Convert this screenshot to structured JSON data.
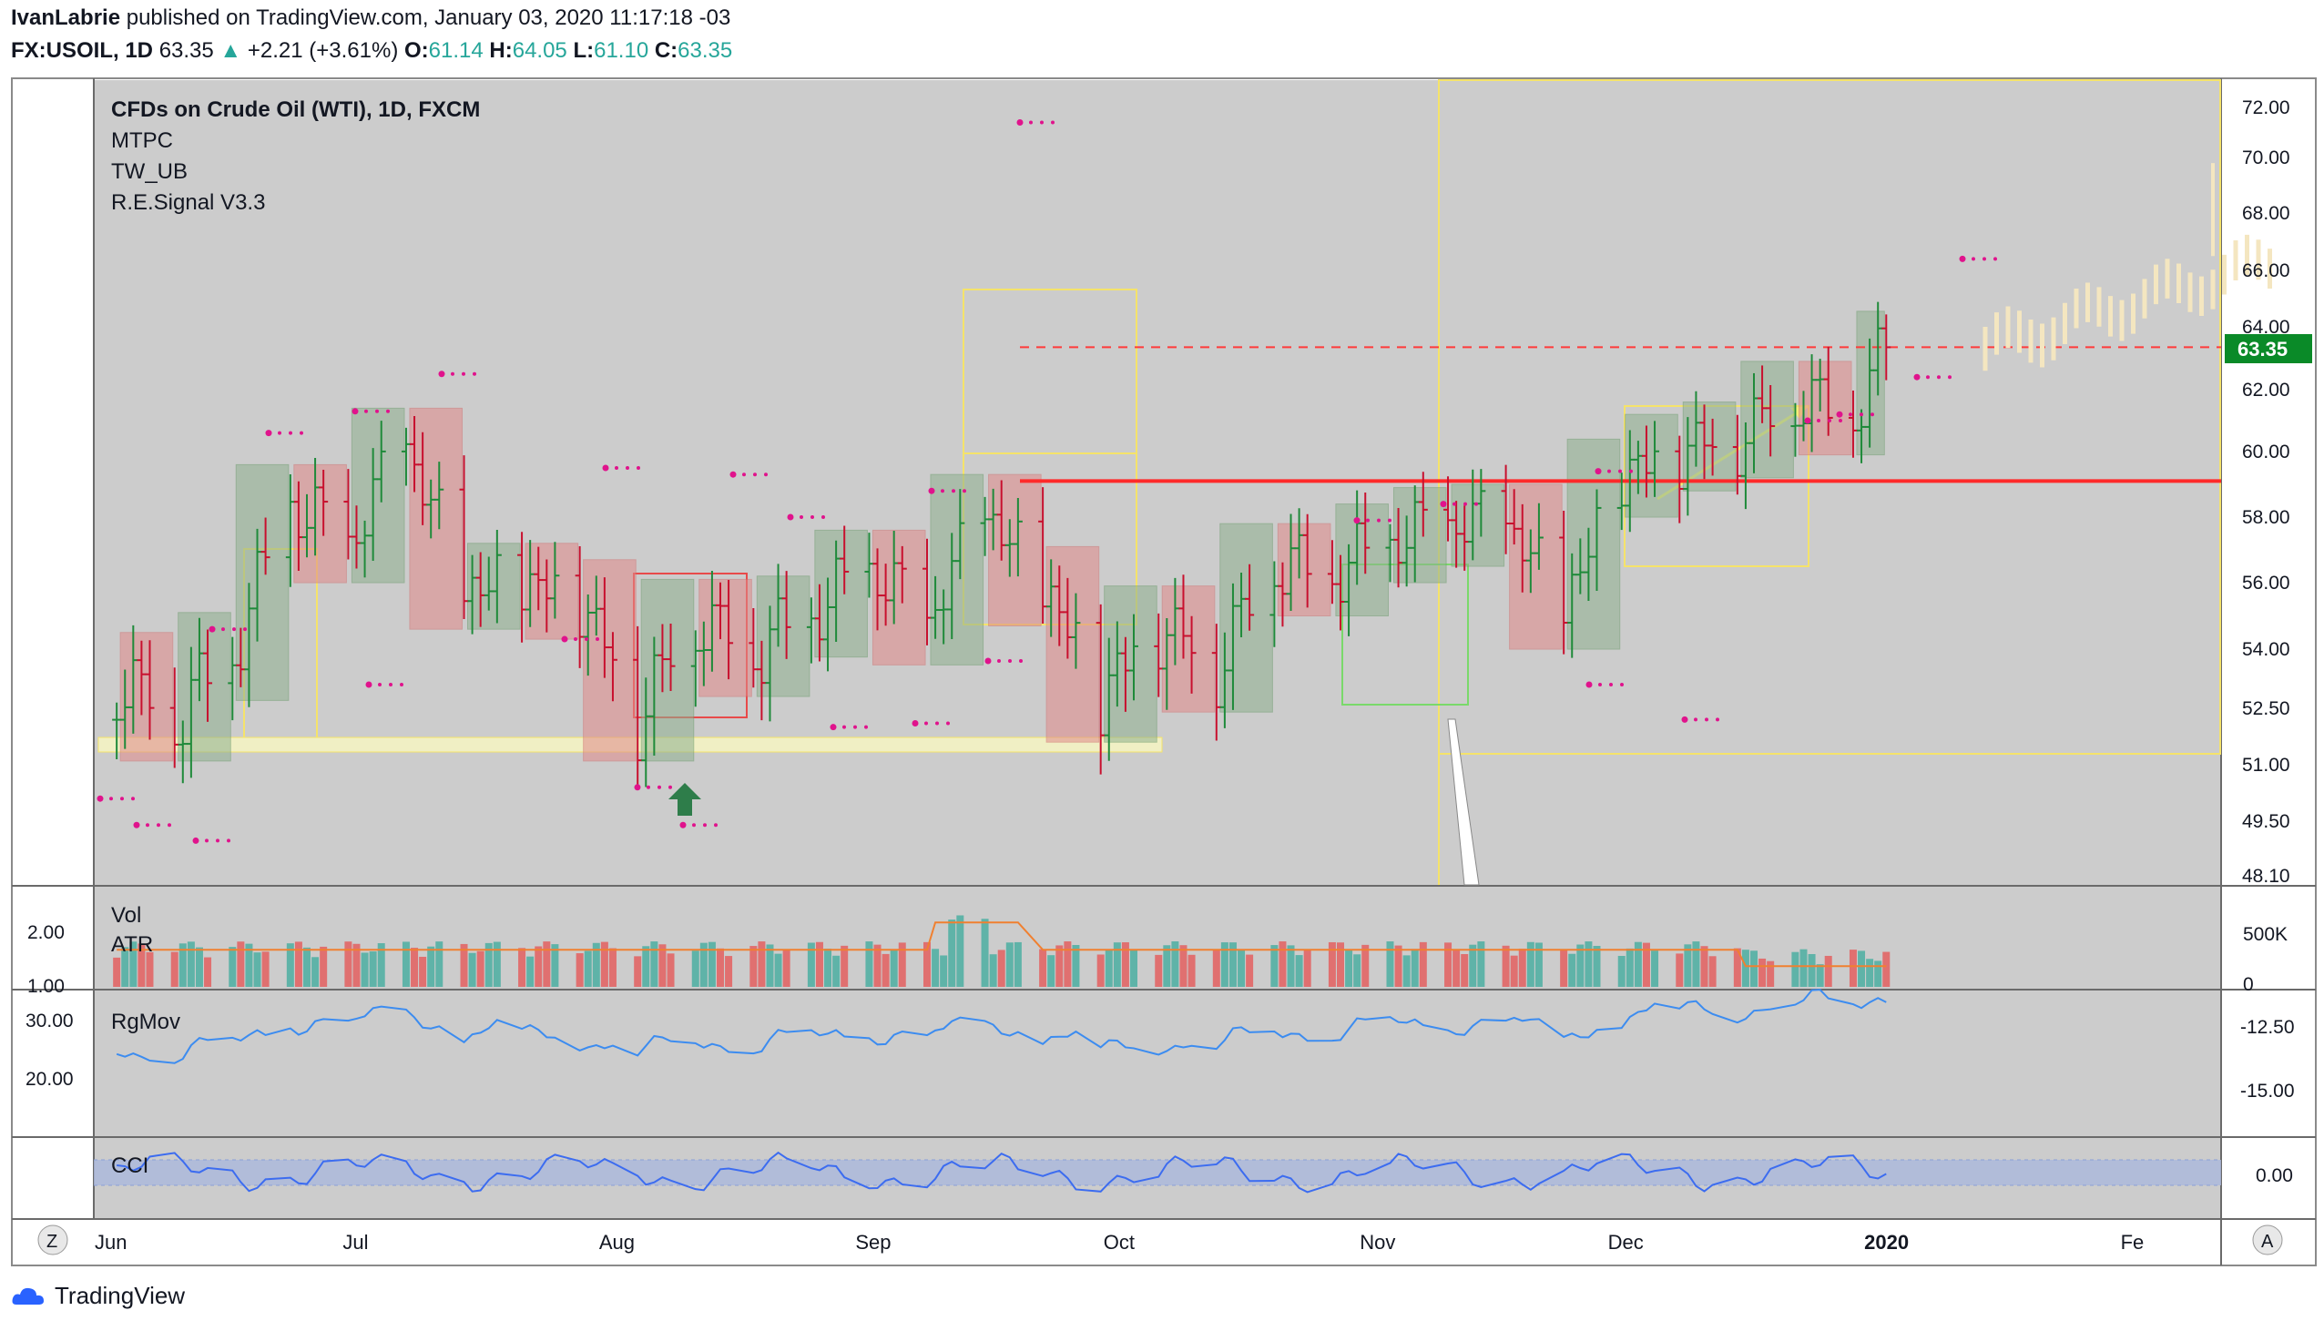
{
  "header": {
    "author": "IvanLabrie",
    "published_text": "published on TradingView.com, January 03, 2020 11:17:18 -03",
    "symbol": "FX:USOIL, 1D",
    "last": "63.35",
    "change": "+2.21 (+3.61%)",
    "o_label": "O:",
    "o_val": "61.14",
    "h_label": "H:",
    "h_val": "64.05",
    "l_label": "L:",
    "l_val": "61.10",
    "c_label": "C:",
    "c_val": "63.35"
  },
  "legend": [
    "CFDs on Crude Oil (WTI), 1D, FXCM",
    "MTPC",
    "TW_UB",
    "R.E.Signal V3.3"
  ],
  "indicators": {
    "vol": "Vol",
    "atr": "ATR",
    "rgmov": "RgMov",
    "cci": "CCI"
  },
  "price_badge": "63.35",
  "footer": {
    "brand": "TradingView",
    "z_btn": "Z",
    "a_btn": "A"
  },
  "colors": {
    "up": "#26a69a",
    "down": "#ef5350",
    "bg": "#cccccc",
    "badge": "#0a8a28",
    "resistance": "#ff2a2a"
  },
  "chart_data": {
    "type": "bar",
    "title": "CFDs on Crude Oil (WTI), 1D, FXCM",
    "price_ticks": [
      "72.00",
      "70.00",
      "68.00",
      "66.00",
      "64.00",
      "62.00",
      "60.00",
      "58.00",
      "56.00",
      "54.00",
      "52.50",
      "51.00",
      "49.50",
      "48.10"
    ],
    "price_tick_values": [
      72,
      70,
      68,
      66,
      64,
      62,
      60,
      58,
      56,
      54,
      52.5,
      51,
      49.5,
      48.1
    ],
    "ylim": [
      47.8,
      72.6
    ],
    "x_ticks": [
      "Jun",
      "Jul",
      "Aug",
      "Sep",
      "Oct",
      "Nov",
      "Dec",
      "2020",
      "Fe"
    ],
    "x_tick_dates": [
      "2019-06-01",
      "2019-07-01",
      "2019-08-01",
      "2019-09-01",
      "2019-10-01",
      "2019-11-01",
      "2019-12-01",
      "2020-01-01",
      "2020-02-01"
    ],
    "resistance_level": 59.1,
    "current_price_level": 63.35,
    "vol_left_ticks": [
      "2.00",
      "1.00"
    ],
    "vol_right_ticks": [
      "500K",
      "0"
    ],
    "rgmov_left_ticks": [
      "30.00",
      "20.00"
    ],
    "rgmov_right_ticks": [
      "-12.50",
      "-15.00"
    ],
    "cci_right_ticks": [
      "0.00"
    ],
    "price_series": [
      {
        "date": "2019-06-03",
        "close": 53.3
      },
      {
        "date": "2019-06-10",
        "close": 52.3
      },
      {
        "date": "2019-06-17",
        "close": 53.9
      },
      {
        "date": "2019-06-24",
        "close": 58.4
      },
      {
        "date": "2019-07-01",
        "close": 57.2
      },
      {
        "date": "2019-07-08",
        "close": 60.2
      },
      {
        "date": "2019-07-15",
        "close": 55.8
      },
      {
        "date": "2019-07-22",
        "close": 56.0
      },
      {
        "date": "2019-07-29",
        "close": 55.5
      },
      {
        "date": "2019-08-05",
        "close": 52.3
      },
      {
        "date": "2019-08-12",
        "close": 54.9
      },
      {
        "date": "2019-08-19",
        "close": 54.0
      },
      {
        "date": "2019-08-26",
        "close": 55.0
      },
      {
        "date": "2019-09-02",
        "close": 56.4
      },
      {
        "date": "2019-09-09",
        "close": 54.8
      },
      {
        "date": "2019-09-16",
        "close": 58.1
      },
      {
        "date": "2019-09-23",
        "close": 55.9
      },
      {
        "date": "2019-09-30",
        "close": 52.8
      },
      {
        "date": "2019-10-07",
        "close": 54.7
      },
      {
        "date": "2019-10-14",
        "close": 53.6
      },
      {
        "date": "2019-10-21",
        "close": 56.6
      },
      {
        "date": "2019-10-28",
        "close": 56.2
      },
      {
        "date": "2019-11-04",
        "close": 57.2
      },
      {
        "date": "2019-11-11",
        "close": 57.7
      },
      {
        "date": "2019-11-18",
        "close": 57.8
      },
      {
        "date": "2019-11-25",
        "close": 55.2
      },
      {
        "date": "2019-12-02",
        "close": 59.2
      },
      {
        "date": "2019-12-09",
        "close": 60.0
      },
      {
        "date": "2019-12-16",
        "close": 60.4
      },
      {
        "date": "2019-12-23",
        "close": 61.7
      },
      {
        "date": "2019-12-30",
        "close": 61.1
      },
      {
        "date": "2020-01-03",
        "close": 63.35
      }
    ]
  }
}
